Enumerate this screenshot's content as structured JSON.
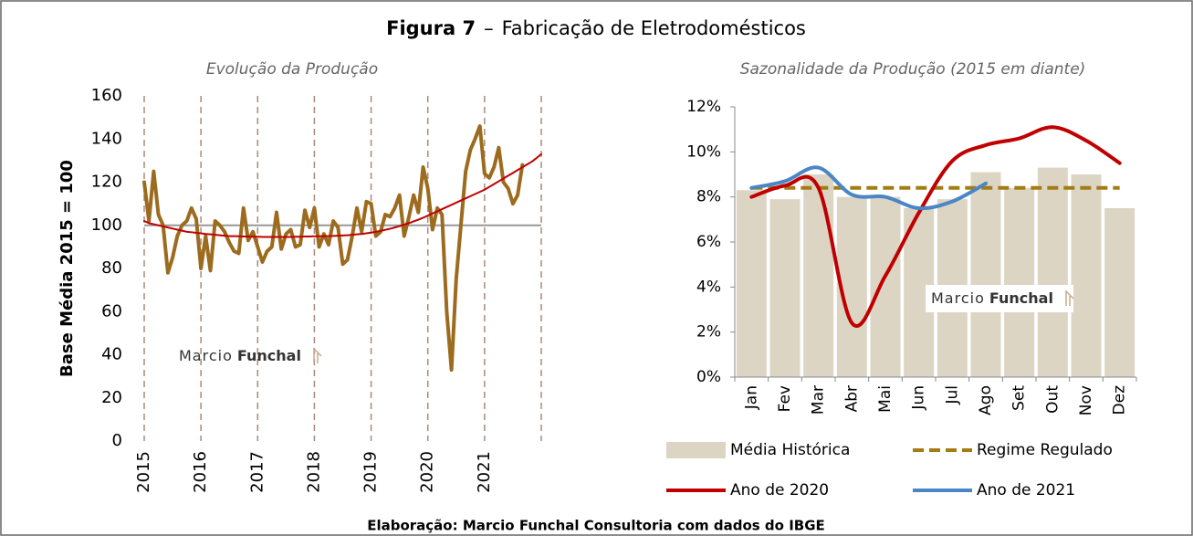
{
  "title_parts": [
    "Figura 7",
    "–",
    "Fabricação de Eletrodomésticos"
  ],
  "footer": "Elaboração: Marcio Funchal Consultoria com dados do IBGE",
  "watermark": [
    "Marcio",
    "Funchal"
  ],
  "chart_data": [
    {
      "type": "line",
      "subtitle": "Evolução da Produção",
      "ylabel": "Base Média 2015 = 100",
      "ylim": [
        0,
        160
      ],
      "yticks": [
        0,
        20,
        40,
        60,
        80,
        100,
        120,
        140,
        160
      ],
      "xlim": [
        2015,
        2022
      ],
      "xticks": [
        2015,
        2016,
        2017,
        2018,
        2019,
        2020,
        2021
      ],
      "vgrid": true,
      "ref_line": 100,
      "x": [
        2015,
        2015.083,
        2015.167,
        2015.25,
        2015.333,
        2015.417,
        2015.5,
        2015.583,
        2015.667,
        2015.75,
        2015.833,
        2015.917,
        2016,
        2016.083,
        2016.167,
        2016.25,
        2016.333,
        2016.417,
        2016.5,
        2016.583,
        2016.667,
        2016.75,
        2016.833,
        2016.917,
        2017,
        2017.083,
        2017.167,
        2017.25,
        2017.333,
        2017.417,
        2017.5,
        2017.583,
        2017.667,
        2017.75,
        2017.833,
        2017.917,
        2018,
        2018.083,
        2018.167,
        2018.25,
        2018.333,
        2018.417,
        2018.5,
        2018.583,
        2018.667,
        2018.75,
        2018.833,
        2018.917,
        2019,
        2019.083,
        2019.167,
        2019.25,
        2019.333,
        2019.417,
        2019.5,
        2019.583,
        2019.667,
        2019.75,
        2019.833,
        2019.917,
        2020,
        2020.083,
        2020.167,
        2020.25,
        2020.333,
        2020.417,
        2020.5,
        2020.583,
        2020.667,
        2020.75,
        2020.833,
        2020.917,
        2021,
        2021.083,
        2021.167,
        2021.25,
        2021.333,
        2021.417,
        2021.5,
        2021.583,
        2021.667,
        2021.75,
        2021.833,
        2021.917,
        2022
      ],
      "series": [
        {
          "color": "#9c6b1e",
          "values": [
            120,
            102,
            125,
            105,
            100,
            78,
            85,
            95,
            100,
            102,
            108,
            103,
            80,
            95,
            79,
            102,
            100,
            97,
            92,
            88,
            87,
            108,
            93,
            97,
            90,
            83,
            88,
            90,
            106,
            89,
            96,
            98,
            90,
            91,
            107,
            99,
            108,
            90,
            96,
            91,
            102,
            99,
            82,
            84,
            95,
            108,
            97,
            111,
            110,
            95,
            97,
            105,
            104,
            108,
            114,
            95,
            104,
            114,
            106,
            127,
            117,
            98,
            108,
            105,
            60,
            33,
            75,
            100,
            125,
            135,
            140,
            146,
            124,
            122,
            127,
            136,
            120,
            117,
            110,
            114,
            128,
            null,
            null,
            null,
            null
          ]
        },
        {
          "color": "#c00000",
          "values": [
            102,
            101,
            100.5,
            100,
            99.5,
            99,
            98.5,
            98,
            97.5,
            97,
            96.8,
            96.5,
            96.3,
            96,
            95.8,
            95.6,
            95.4,
            95.2,
            95,
            95,
            94.9,
            94.8,
            94.8,
            94.7,
            94.7,
            94.6,
            94.6,
            94.6,
            94.6,
            94.6,
            94.6,
            94.6,
            94.7,
            94.7,
            94.8,
            94.8,
            94.9,
            94.9,
            95,
            95,
            95.1,
            95.2,
            95.3,
            95.4,
            95.6,
            95.8,
            96,
            96.3,
            96.6,
            97,
            97.4,
            97.9,
            98.4,
            99,
            99.6,
            100.3,
            101,
            101.8,
            102.6,
            103.5,
            104.5,
            105.5,
            106.5,
            107.5,
            108.5,
            109.5,
            110.5,
            111.5,
            112.5,
            113.5,
            114.5,
            115.5,
            116.5,
            117.8,
            119.1,
            120.4,
            121.7,
            123,
            124.3,
            125.6,
            126.9,
            128.2,
            129.5,
            131.2,
            133
          ]
        }
      ]
    },
    {
      "type": "bar",
      "subtitle": "Sazonalidade da Produção (2015 em diante)",
      "categories": [
        "Jan",
        "Fev",
        "Mar",
        "Abr",
        "Mai",
        "Jun",
        "Jul",
        "Ago",
        "Set",
        "Out",
        "Nov",
        "Dez"
      ],
      "ylim": [
        0,
        12
      ],
      "yticks": [
        {
          "value": 0,
          "label": "0%"
        },
        {
          "value": 2,
          "label": "2%"
        },
        {
          "value": 4,
          "label": "4%"
        },
        {
          "value": 6,
          "label": "6%"
        },
        {
          "value": 8,
          "label": "8%"
        },
        {
          "value": 10,
          "label": "10%"
        },
        {
          "value": 12,
          "label": "12%"
        }
      ],
      "series": [
        {
          "name": "Média Histórica",
          "kind": "bar",
          "color": "#ddd5c4",
          "values": [
            8.3,
            7.9,
            9.0,
            8.0,
            8.0,
            7.5,
            7.9,
            9.1,
            8.4,
            9.3,
            9.0,
            7.5
          ]
        },
        {
          "name": "Regime Regulado",
          "kind": "line",
          "dash": true,
          "color": "#a47c14",
          "values": [
            8.4,
            8.4,
            8.4,
            8.4,
            8.4,
            8.4,
            8.4,
            8.4,
            8.4,
            8.4,
            8.4,
            8.4
          ]
        },
        {
          "name": "Ano de 2020",
          "kind": "line",
          "smooth": true,
          "color": "#c00000",
          "values": [
            8.0,
            8.5,
            8.4,
            2.4,
            4.5,
            7.3,
            9.6,
            10.3,
            10.6,
            11.1,
            10.5,
            9.5
          ]
        },
        {
          "name": "Ano de 2021",
          "kind": "line",
          "smooth": true,
          "color": "#4a86c5",
          "values": [
            8.4,
            8.7,
            9.3,
            8.1,
            8.0,
            7.5,
            7.8,
            8.6,
            null,
            null,
            null,
            null
          ]
        }
      ]
    }
  ]
}
